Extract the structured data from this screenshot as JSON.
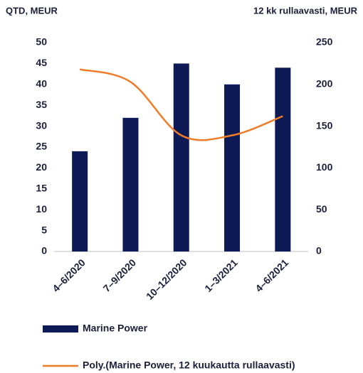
{
  "chart_data": {
    "type": "bar_line",
    "y_title": "QTD, MEUR",
    "y2_title": "12 kk rullaavasti, MEUR",
    "categories": [
      "4–6/2020",
      "7–9/2020",
      "10–12/2020",
      "1–3/2021",
      "4–6/2021"
    ],
    "series": [
      {
        "name": "Marine Power",
        "type": "bar",
        "color": "#0d1a55",
        "values": [
          24,
          32,
          45,
          40,
          44
        ]
      },
      {
        "name": "Poly.(Marine Power, 12 kuukautta rullaavasti)",
        "type": "line",
        "axis": "y2",
        "color": "#f07c28",
        "values": [
          218,
          203,
          139,
          139,
          162
        ]
      }
    ],
    "ylim": [
      0,
      50
    ],
    "yticks": [
      0,
      5,
      10,
      15,
      20,
      25,
      30,
      35,
      40,
      45,
      50
    ],
    "y2lim": [
      0,
      250
    ],
    "y2ticks": [
      0,
      50,
      100,
      150,
      200,
      250
    ],
    "legend": "bottom"
  }
}
